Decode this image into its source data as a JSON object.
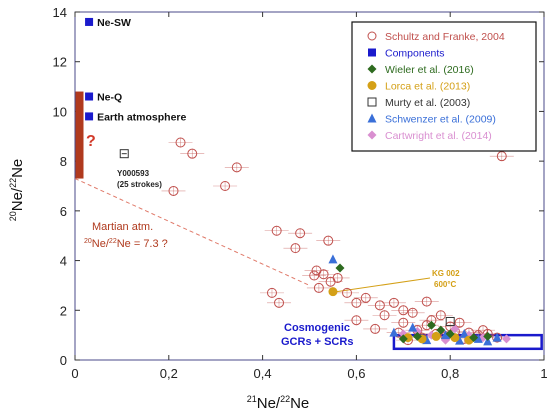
{
  "chart_data": {
    "type": "scatter",
    "xlabel_main": "Ne/",
    "xlabel_sup1": "21",
    "xlabel_sup2": "22",
    "xlabel_tail": "Ne",
    "ylabel_sup1": "20",
    "ylabel_mid": "Ne/",
    "ylabel_sup2": "22",
    "ylabel_tail": "Ne",
    "xlim": [
      0,
      1
    ],
    "ylim": [
      0,
      14
    ],
    "xticks": [
      "0",
      "0,2",
      "0,4",
      "0,6",
      "0,8",
      "1"
    ],
    "yticks": [
      "0",
      "2",
      "4",
      "6",
      "8",
      "10",
      "12",
      "14"
    ],
    "colors": {
      "schultz": "#c0504d",
      "components": "#1a1acc",
      "wieler": "#2e6b1f",
      "lorca": "#d4a017",
      "murty": "#333333",
      "schwenzer": "#3a6fd8",
      "cartwright": "#d98fd0",
      "bar": "#b03a1e",
      "martian_line": "#e07a6a",
      "cosmo_box": "#1a1acc"
    },
    "legend": [
      {
        "label": "Schultz and Franke, 2004",
        "key": "schultz",
        "marker": "open-circle"
      },
      {
        "label": "Components",
        "key": "components",
        "marker": "square"
      },
      {
        "label": "Wieler et al. (2016)",
        "key": "wieler",
        "marker": "diamond"
      },
      {
        "label": "Lorca et al. (2013)",
        "key": "lorca",
        "marker": "circle"
      },
      {
        "label": "Murty et al. (2003)",
        "key": "murty",
        "marker": "open-square"
      },
      {
        "label": "Schwenzer et al. (2009)",
        "key": "schwenzer",
        "marker": "triangle"
      },
      {
        "label": "Cartwright et al. (2014)",
        "key": "cartwright",
        "marker": "diamond"
      }
    ],
    "components": [
      {
        "label": "Ne-SW",
        "x": 0.03,
        "y": 13.6
      },
      {
        "label": "Ne-Q",
        "x": 0.03,
        "y": 10.6
      },
      {
        "label": "Earth atmosphere",
        "x": 0.03,
        "y": 9.8
      }
    ],
    "martian_bar": {
      "x": 0.01,
      "y_low": 7.3,
      "y_high": 10.8,
      "label": "?"
    },
    "martian_line": {
      "x": [
        0.0,
        0.5
      ],
      "y": [
        7.3,
        3.0
      ]
    },
    "martian_label_1": "Martian atm.",
    "martian_label_sup1": "20",
    "martian_label_sup2": "22",
    "martian_label_2a": "Ne/",
    "martian_label_2b": "Ne = 7.3 ?",
    "murty_point": {
      "x": 0.105,
      "y": 8.3,
      "label_1": "Y000593",
      "label_2": "(25 strokes)"
    },
    "kg_point": {
      "x": 0.55,
      "y": 2.75,
      "label_1": "KG 002",
      "label_2": "600°C"
    },
    "cosmo_label_1": "Cosmogenic",
    "cosmo_label_2": "GCRs + SCRs",
    "cosmo_box": {
      "x0": 0.68,
      "x1": 0.995,
      "y0": 0.45,
      "y1": 1.0
    },
    "schultz": [
      {
        "x": 0.225,
        "y": 8.75
      },
      {
        "x": 0.25,
        "y": 8.3
      },
      {
        "x": 0.21,
        "y": 6.8
      },
      {
        "x": 0.32,
        "y": 7.0
      },
      {
        "x": 0.345,
        "y": 7.75
      },
      {
        "x": 0.91,
        "y": 8.2
      },
      {
        "x": 0.43,
        "y": 5.2
      },
      {
        "x": 0.48,
        "y": 5.1
      },
      {
        "x": 0.47,
        "y": 4.5
      },
      {
        "x": 0.54,
        "y": 4.8
      },
      {
        "x": 0.515,
        "y": 3.6
      },
      {
        "x": 0.53,
        "y": 3.45
      },
      {
        "x": 0.51,
        "y": 3.4
      },
      {
        "x": 0.56,
        "y": 3.3
      },
      {
        "x": 0.545,
        "y": 3.15
      },
      {
        "x": 0.42,
        "y": 2.7
      },
      {
        "x": 0.435,
        "y": 2.3
      },
      {
        "x": 0.52,
        "y": 2.9
      },
      {
        "x": 0.58,
        "y": 2.7
      },
      {
        "x": 0.6,
        "y": 2.3
      },
      {
        "x": 0.62,
        "y": 2.5
      },
      {
        "x": 0.65,
        "y": 2.2
      },
      {
        "x": 0.68,
        "y": 2.3
      },
      {
        "x": 0.7,
        "y": 2.0
      },
      {
        "x": 0.75,
        "y": 2.35
      },
      {
        "x": 0.72,
        "y": 1.9
      },
      {
        "x": 0.66,
        "y": 1.8
      },
      {
        "x": 0.6,
        "y": 1.6
      },
      {
        "x": 0.7,
        "y": 1.5
      },
      {
        "x": 0.75,
        "y": 1.4
      },
      {
        "x": 0.8,
        "y": 1.35
      },
      {
        "x": 0.78,
        "y": 1.8
      },
      {
        "x": 0.82,
        "y": 1.5
      },
      {
        "x": 0.64,
        "y": 1.25
      },
      {
        "x": 0.69,
        "y": 1.1
      },
      {
        "x": 0.73,
        "y": 1.2
      },
      {
        "x": 0.77,
        "y": 1.05
      },
      {
        "x": 0.81,
        "y": 1.15
      },
      {
        "x": 0.84,
        "y": 1.1
      },
      {
        "x": 0.86,
        "y": 1.0
      },
      {
        "x": 0.88,
        "y": 1.05
      },
      {
        "x": 0.79,
        "y": 0.95
      },
      {
        "x": 0.74,
        "y": 0.9
      },
      {
        "x": 0.9,
        "y": 0.9
      },
      {
        "x": 0.83,
        "y": 0.85
      },
      {
        "x": 0.71,
        "y": 0.8
      },
      {
        "x": 0.87,
        "y": 1.2
      },
      {
        "x": 0.76,
        "y": 1.6
      }
    ],
    "wieler": [
      {
        "x": 0.565,
        "y": 3.7
      },
      {
        "x": 0.76,
        "y": 1.4
      },
      {
        "x": 0.78,
        "y": 1.2
      },
      {
        "x": 0.73,
        "y": 0.95
      },
      {
        "x": 0.8,
        "y": 1.05
      },
      {
        "x": 0.85,
        "y": 0.9
      },
      {
        "x": 0.7,
        "y": 0.85
      },
      {
        "x": 0.88,
        "y": 0.95
      }
    ],
    "lorca": [
      {
        "x": 0.55,
        "y": 2.75
      },
      {
        "x": 0.71,
        "y": 0.9
      },
      {
        "x": 0.74,
        "y": 0.85
      },
      {
        "x": 0.77,
        "y": 0.95
      },
      {
        "x": 0.81,
        "y": 0.9
      },
      {
        "x": 0.84,
        "y": 0.8
      }
    ],
    "murty": [
      {
        "x": 0.105,
        "y": 8.3
      },
      {
        "x": 0.8,
        "y": 1.55
      }
    ],
    "schwenzer": [
      {
        "x": 0.55,
        "y": 4.05
      },
      {
        "x": 0.68,
        "y": 1.1
      },
      {
        "x": 0.72,
        "y": 1.3
      },
      {
        "x": 0.79,
        "y": 1.0
      },
      {
        "x": 0.83,
        "y": 1.05
      },
      {
        "x": 0.86,
        "y": 0.85
      },
      {
        "x": 0.9,
        "y": 0.9
      },
      {
        "x": 0.75,
        "y": 0.8
      },
      {
        "x": 0.88,
        "y": 0.75
      },
      {
        "x": 0.82,
        "y": 0.78
      }
    ],
    "cartwright": [
      {
        "x": 0.7,
        "y": 1.05
      },
      {
        "x": 0.73,
        "y": 1.15
      },
      {
        "x": 0.76,
        "y": 1.0
      },
      {
        "x": 0.81,
        "y": 1.25
      },
      {
        "x": 0.84,
        "y": 1.0
      },
      {
        "x": 0.87,
        "y": 0.9
      },
      {
        "x": 0.79,
        "y": 0.8
      },
      {
        "x": 0.92,
        "y": 0.85
      }
    ]
  }
}
